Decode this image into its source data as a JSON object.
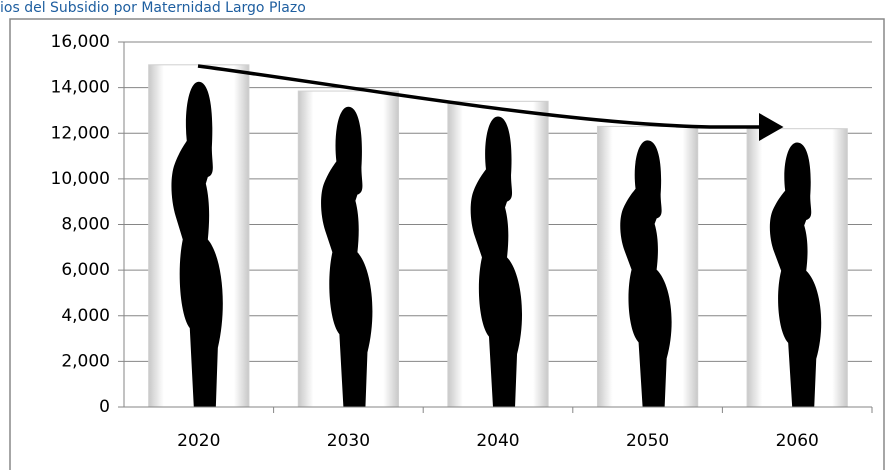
{
  "chart_data": {
    "type": "bar",
    "title": "ios del Subsidio por Maternidad Largo Plazo",
    "categories": [
      "2020",
      "2030",
      "2040",
      "2050",
      "2060"
    ],
    "values": [
      15000,
      13850,
      13400,
      12300,
      12200
    ],
    "color": "#000000",
    "ylim": [
      0,
      16000
    ],
    "yticks": [
      0,
      {
        "value": 2000,
        "label": "2,000"
      },
      {
        "value": 4000,
        "label": "4,000"
      },
      {
        "value": 6000,
        "label": "6,000"
      },
      {
        "value": 8000,
        "label": "8,000"
      },
      {
        "value": 10000,
        "label": "10,000"
      },
      {
        "value": 12000,
        "label": "12,000"
      },
      {
        "value": 14000,
        "label": "14,000"
      },
      {
        "value": 16000,
        "label": "16,000"
      }
    ],
    "grid": true
  }
}
